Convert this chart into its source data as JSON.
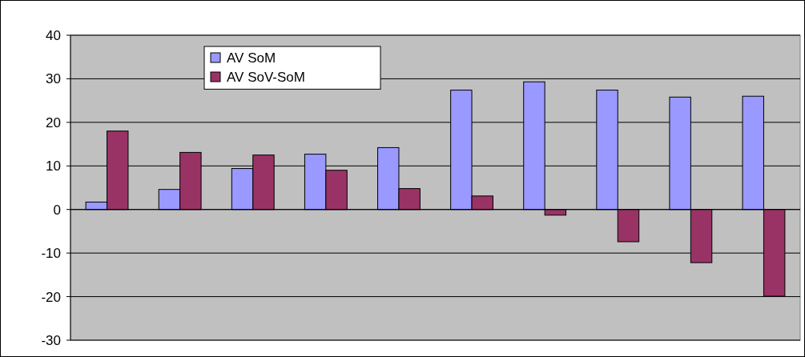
{
  "chart_data": {
    "type": "bar",
    "categories": [
      null,
      null,
      null,
      null,
      null,
      null,
      null,
      null,
      null,
      null
    ],
    "series": [
      {
        "name": "AV SoM",
        "color": "#9999ff",
        "values": [
          1.7,
          4.6,
          9.4,
          12.7,
          14.2,
          27.4,
          29.3,
          27.4,
          25.8,
          26.0
        ]
      },
      {
        "name": "AV SoV-SoM",
        "color": "#993366",
        "values": [
          18.0,
          13.1,
          12.5,
          9.0,
          4.8,
          3.1,
          -1.3,
          -7.4,
          -12.2,
          -19.9
        ]
      }
    ],
    "ylim": [
      -30,
      40
    ],
    "yticks": [
      -30,
      -20,
      -10,
      0,
      10,
      20,
      30,
      40
    ],
    "grid": "y",
    "legend": "top left"
  }
}
